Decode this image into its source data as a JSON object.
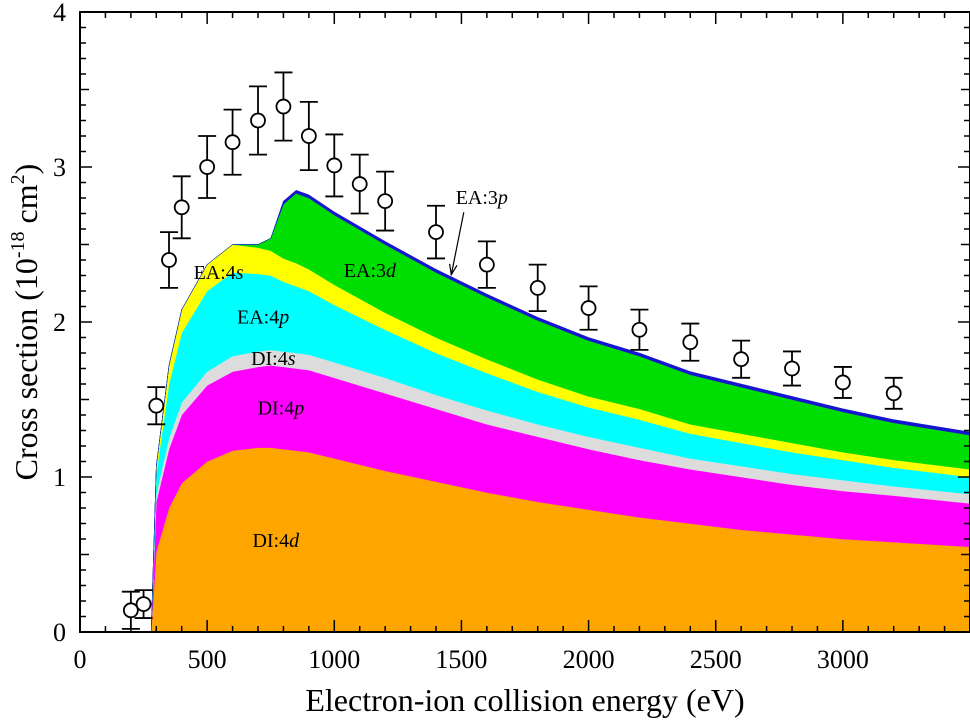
{
  "chart_data": {
    "type": "area",
    "xlabel": "Electron-ion collision energy (eV)",
    "ylabel": {
      "pre": "Cross section (10",
      "sup1": "-18",
      "mid": " cm",
      "sup2": "2",
      "post": ")"
    },
    "xlim": [
      0,
      3500
    ],
    "ylim": [
      0,
      4
    ],
    "x_ticks": [
      "0",
      "500",
      "1000",
      "1500",
      "2000",
      "2500",
      "3000"
    ],
    "y_ticks": [
      "0",
      "1",
      "2",
      "3",
      "4"
    ],
    "grid": false,
    "x_energy": [
      280,
      300,
      350,
      400,
      500,
      600,
      700,
      750,
      800,
      850,
      900,
      1000,
      1200,
      1400,
      1600,
      1800,
      2000,
      2200,
      2400,
      2600,
      2800,
      3000,
      3200,
      3500
    ],
    "series": [
      {
        "name": "DI:4d",
        "label_main": "DI:4",
        "label_italic": "d",
        "color": "#FFA500",
        "values": [
          0,
          0.52,
          0.8,
          0.96,
          1.1,
          1.17,
          1.19,
          1.19,
          1.18,
          1.17,
          1.16,
          1.12,
          1.04,
          0.97,
          0.9,
          0.84,
          0.79,
          0.74,
          0.7,
          0.66,
          0.63,
          0.6,
          0.58,
          0.55
        ]
      },
      {
        "name": "DI:4p",
        "label_main": "DI:4",
        "label_italic": "p",
        "color": "#FF00FF",
        "values": [
          0,
          0.32,
          0.38,
          0.44,
          0.49,
          0.51,
          0.52,
          0.53,
          0.53,
          0.53,
          0.53,
          0.52,
          0.5,
          0.47,
          0.44,
          0.42,
          0.39,
          0.37,
          0.35,
          0.34,
          0.32,
          0.31,
          0.3,
          0.28
        ]
      },
      {
        "name": "DI:4s",
        "label_main": "DI:4",
        "label_italic": "s",
        "color": "#DCDCDC",
        "values": [
          0,
          0.05,
          0.07,
          0.08,
          0.09,
          0.1,
          0.1,
          0.1,
          0.1,
          0.1,
          0.1,
          0.1,
          0.1,
          0.09,
          0.09,
          0.08,
          0.08,
          0.08,
          0.07,
          0.07,
          0.07,
          0.07,
          0.06,
          0.06
        ]
      },
      {
        "name": "EA:4p",
        "label_main": "EA:4",
        "label_italic": "p",
        "color": "#00FFFF",
        "values": [
          0,
          0.13,
          0.35,
          0.45,
          0.52,
          0.54,
          0.5,
          0.48,
          0.45,
          0.43,
          0.41,
          0.37,
          0.31,
          0.27,
          0.24,
          0.21,
          0.19,
          0.18,
          0.16,
          0.15,
          0.14,
          0.13,
          0.12,
          0.11
        ]
      },
      {
        "name": "EA:4s",
        "label_main": "EA:4",
        "label_italic": "s",
        "color": "#FFFF00",
        "values": [
          0,
          0.05,
          0.12,
          0.15,
          0.17,
          0.18,
          0.17,
          0.16,
          0.15,
          0.15,
          0.14,
          0.13,
          0.11,
          0.1,
          0.09,
          0.08,
          0.07,
          0.07,
          0.06,
          0.06,
          0.06,
          0.05,
          0.05,
          0.05
        ]
      },
      {
        "name": "EA:3d",
        "label_main": "EA:3",
        "label_italic": "d",
        "color": "#00DD00",
        "values": [
          0,
          0,
          0,
          0,
          0,
          0,
          0.02,
          0.08,
          0.35,
          0.45,
          0.46,
          0.45,
          0.44,
          0.42,
          0.4,
          0.38,
          0.36,
          0.34,
          0.32,
          0.3,
          0.28,
          0.26,
          0.24,
          0.22
        ]
      },
      {
        "name": "EA:3p",
        "label_main": "EA:3",
        "label_italic": "p",
        "color": "#1414D2",
        "values": [
          0,
          0,
          0,
          0,
          0,
          0,
          0,
          0,
          0.02,
          0.02,
          0.02,
          0.02,
          0.02,
          0.02,
          0.02,
          0.02,
          0.02,
          0.02,
          0.02,
          0.02,
          0.02,
          0.02,
          0.02,
          0.02
        ]
      }
    ],
    "measurements": {
      "x": [
        200,
        250,
        300,
        350,
        400,
        500,
        600,
        700,
        800,
        900,
        1000,
        1100,
        1200,
        1400,
        1600,
        1800,
        2000,
        2200,
        2400,
        2600,
        2800,
        3000,
        3200
      ],
      "y": [
        0.14,
        0.18,
        1.46,
        2.4,
        2.74,
        3.0,
        3.16,
        3.3,
        3.39,
        3.2,
        3.01,
        2.89,
        2.78,
        2.58,
        2.37,
        2.22,
        2.09,
        1.95,
        1.87,
        1.76,
        1.7,
        1.61,
        1.54
      ],
      "err": [
        0.12,
        0.09,
        0.12,
        0.18,
        0.2,
        0.2,
        0.21,
        0.22,
        0.22,
        0.22,
        0.2,
        0.19,
        0.19,
        0.17,
        0.15,
        0.15,
        0.14,
        0.13,
        0.12,
        0.12,
        0.11,
        0.1,
        0.1
      ]
    }
  }
}
